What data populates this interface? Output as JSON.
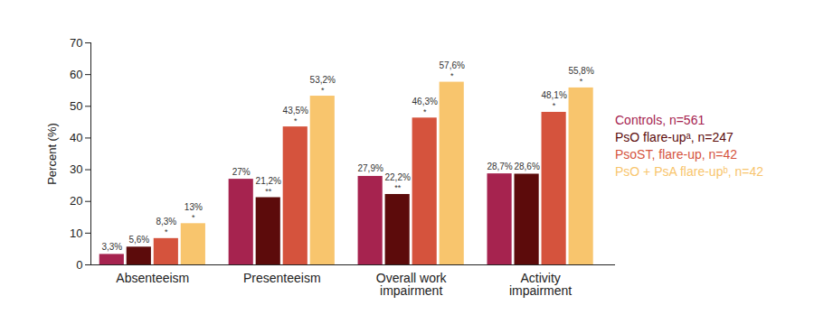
{
  "chart_data": {
    "type": "bar",
    "y_label": "Percent (%)",
    "categories": [
      "Absenteeism",
      "Presenteeism",
      "Overall work impairment",
      "Activity impairment"
    ],
    "series": [
      {
        "name": "Controls, n=561",
        "color": "#a6234f",
        "values": [
          3.3,
          27,
          27.9,
          28.7
        ],
        "value_labels": [
          "3,3%",
          "27%",
          "27,9%",
          "28,7%"
        ]
      },
      {
        "name": "PsO flare-upᵃ, n=247",
        "color": "#5c0b0b",
        "values": [
          5.6,
          21.2,
          22.2,
          28.6
        ],
        "value_labels": [
          "5,6%",
          "21,2%",
          "22,2%",
          "28,6%"
        ],
        "annotations": [
          null,
          "**",
          "**",
          null
        ]
      },
      {
        "name": "PsoST, flare-up, n=42",
        "color": "#d5533d",
        "values": [
          8.3,
          43.5,
          46.3,
          48.1
        ],
        "value_labels": [
          "8,3%",
          "43,5%",
          "46,3%",
          "48,1%"
        ],
        "annotations": [
          "*",
          "*",
          "*",
          "*"
        ]
      },
      {
        "name": "PsO + PsA flare-upᵇ, n=42",
        "color": "#f8c56d",
        "values": [
          13,
          53.2,
          57.6,
          55.8
        ],
        "value_labels": [
          "13%",
          "53,2%",
          "57,6%",
          "55,8%"
        ],
        "annotations": [
          "*",
          "*",
          "*",
          "*"
        ]
      }
    ],
    "ylim": [
      0,
      70
    ],
    "yticks": [
      0,
      10,
      20,
      30,
      40,
      50,
      60,
      70
    ],
    "grid": false,
    "data_labels": true,
    "legend": "right"
  }
}
